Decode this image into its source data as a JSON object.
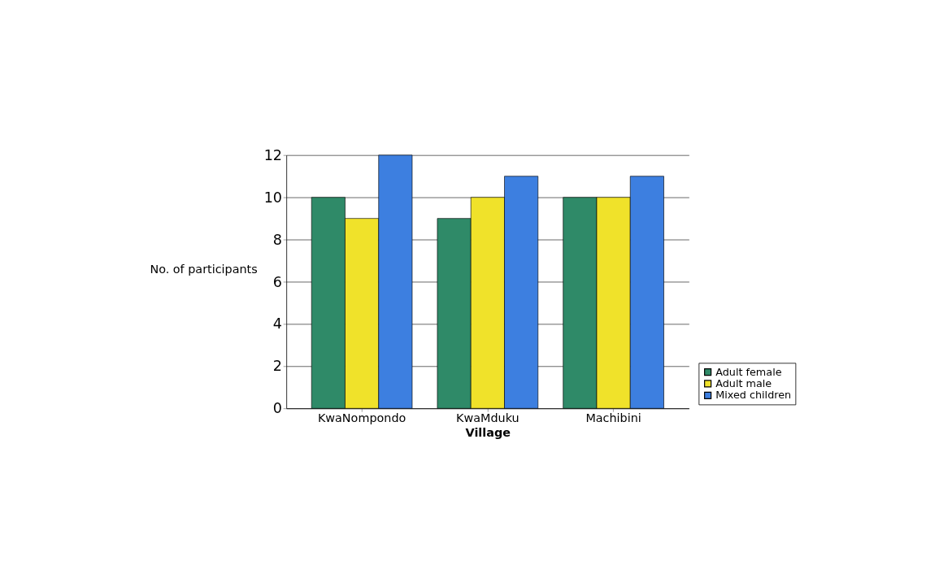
{
  "chart_data": {
    "type": "bar",
    "xlabel": "Village",
    "ylabel": "No. of participants",
    "categories": [
      "KwaNompondo",
      "KwaMduku",
      "Machibini"
    ],
    "series": [
      {
        "name": "Adult female",
        "color": "#2f8a68",
        "values": [
          10,
          9,
          10
        ]
      },
      {
        "name": "Adult male",
        "color": "#f0e22a",
        "values": [
          9,
          10,
          10
        ]
      },
      {
        "name": "Mixed children",
        "color": "#3d7fe0",
        "values": [
          12,
          11,
          11
        ]
      }
    ],
    "ylim": [
      0,
      12
    ],
    "yticks": [
      0,
      2,
      4,
      6,
      8,
      10,
      12
    ],
    "grid": "y",
    "legend": "bottom right"
  }
}
